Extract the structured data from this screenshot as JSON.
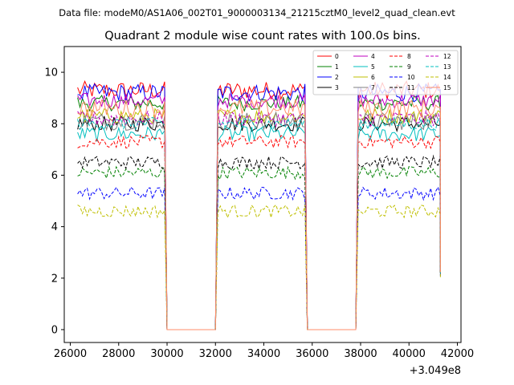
{
  "chart_data": {
    "type": "line",
    "suptitle": "Data file: modeM0/AS1A06_002T01_9000003134_21215cztM0_level2_quad_clean.evt",
    "title": "Quadrant 2 module wise count rates with 100.0s bins.",
    "xlabel": "",
    "ylabel": "",
    "x_offset_label": "+3.049e8",
    "xlim": [
      25750,
      42150
    ],
    "ylim": [
      -0.5,
      11.0
    ],
    "xticks": [
      26000,
      28000,
      30000,
      32000,
      34000,
      36000,
      38000,
      40000,
      42000
    ],
    "xtick_labels": [
      "26000",
      "28000",
      "30000",
      "32000",
      "34000",
      "36000",
      "38000",
      "40000",
      "42000"
    ],
    "yticks": [
      0,
      2,
      4,
      6,
      8,
      10
    ],
    "ytick_labels": [
      "0",
      "2",
      "4",
      "6",
      "8",
      "10"
    ],
    "legend_position": "top-right",
    "x_segments": [
      [
        26300,
        29900
      ],
      [
        32100,
        35700
      ],
      [
        37900,
        41300
      ]
    ],
    "gap_x": [
      30000,
      31900,
      35800,
      37800
    ],
    "series": [
      {
        "name": "0",
        "color": "#ff0000",
        "dash": "solid",
        "level": 9.3,
        "noise": 0.35
      },
      {
        "name": "1",
        "color": "#008000",
        "dash": "solid",
        "level": 8.8,
        "noise": 0.3
      },
      {
        "name": "2",
        "color": "#0000ff",
        "dash": "solid",
        "level": 9.2,
        "noise": 0.35
      },
      {
        "name": "3",
        "color": "#000000",
        "dash": "solid",
        "level": 8.0,
        "noise": 0.3
      },
      {
        "name": "4",
        "color": "#bf00bf",
        "dash": "solid",
        "level": 8.9,
        "noise": 0.3
      },
      {
        "name": "5",
        "color": "#00bfbf",
        "dash": "solid",
        "level": 7.6,
        "noise": 0.3
      },
      {
        "name": "6",
        "color": "#bfbf00",
        "dash": "solid",
        "level": 8.3,
        "noise": 0.3
      },
      {
        "name": "7",
        "color": "#808080",
        "dash": "solid",
        "level": 8.1,
        "noise": 0.35
      },
      {
        "name": "8",
        "color": "#ff0000",
        "dash": "dashed",
        "level": 7.3,
        "noise": 0.25
      },
      {
        "name": "9",
        "color": "#008000",
        "dash": "dashed",
        "level": 6.1,
        "noise": 0.25
      },
      {
        "name": "10",
        "color": "#0000ff",
        "dash": "dashed",
        "level": 5.3,
        "noise": 0.25
      },
      {
        "name": "11",
        "color": "#000000",
        "dash": "dashed",
        "level": 6.5,
        "noise": 0.25
      },
      {
        "name": "12",
        "color": "#bf00bf",
        "dash": "dashed",
        "level": 8.2,
        "noise": 0.3
      },
      {
        "name": "13",
        "color": "#00bfbf",
        "dash": "dashed",
        "level": 8.0,
        "noise": 0.25
      },
      {
        "name": "14",
        "color": "#bfbf00",
        "dash": "dashed",
        "level": 4.6,
        "noise": 0.25
      },
      {
        "name": "15",
        "color": "#ff8c69",
        "dash": "solid",
        "level": 8.6,
        "noise": 0.35
      }
    ]
  }
}
